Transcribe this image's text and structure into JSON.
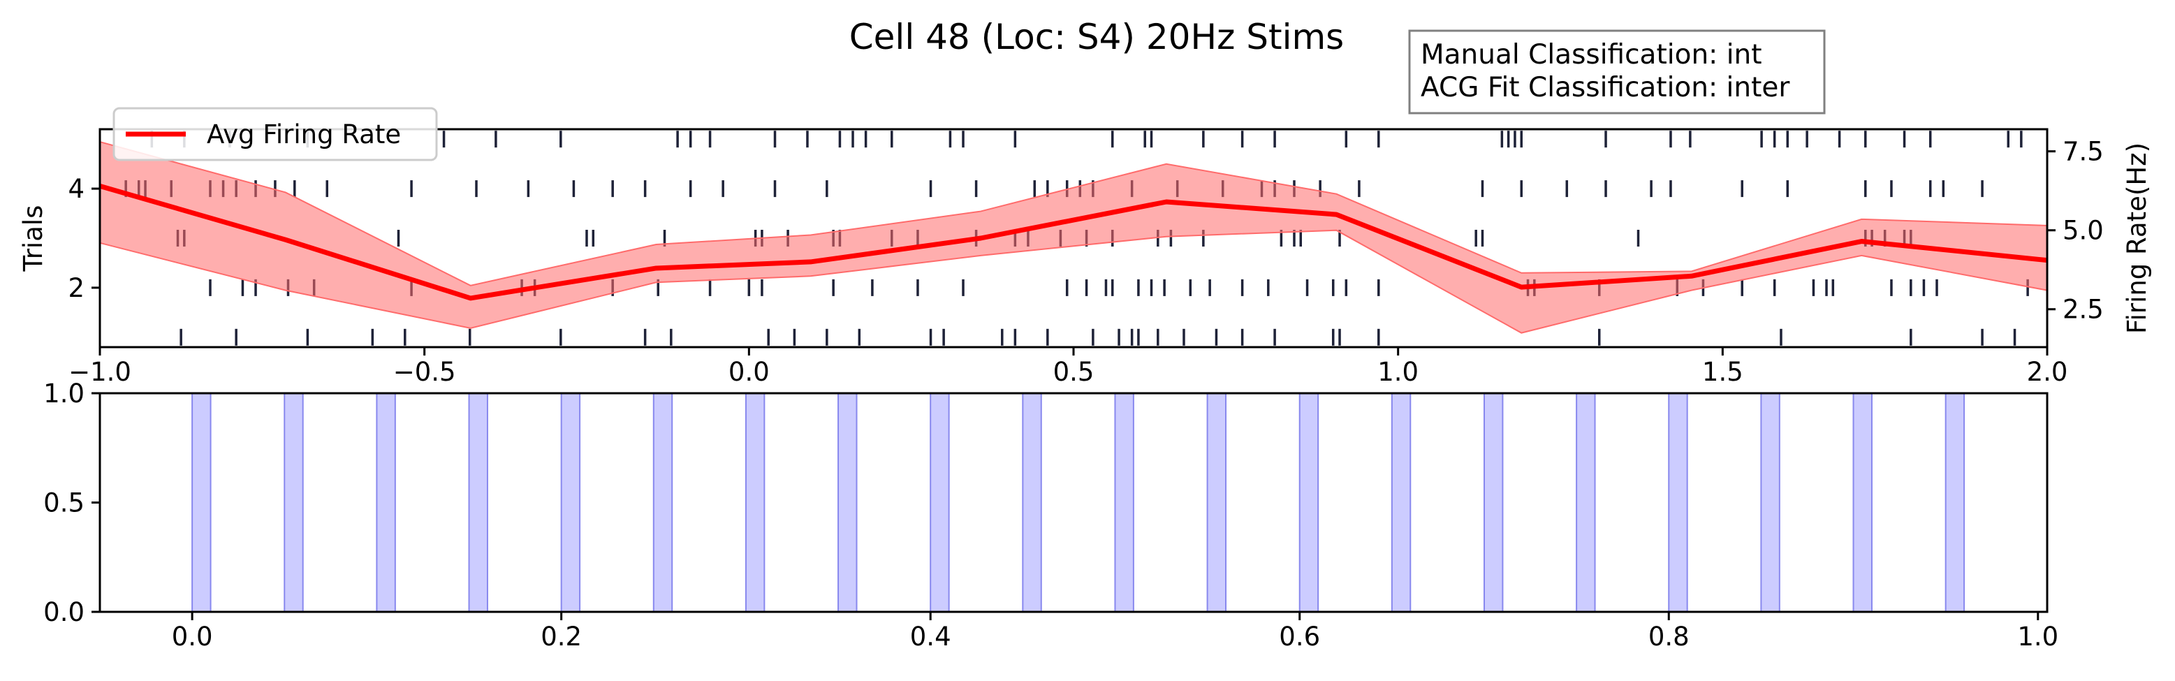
{
  "figure": {
    "title": "Cell 48 (Loc: S4) 20Hz Stims",
    "classification_lines": [
      "Manual Classification: int",
      "ACG Fit Classification: inter"
    ]
  },
  "colors": {
    "firing_rate_line": "#ff0000",
    "firing_rate_band": "#ff6b6b",
    "spike_tick": "#1e2238",
    "stim_fill": "#ccccff",
    "stim_edge": "#8888ee"
  },
  "chart_data": [
    {
      "type": "line",
      "panel": "raster-with-firing-rate",
      "xlim": [
        -1.0,
        2.0
      ],
      "x_ticks": [
        "−1.0",
        "−0.5",
        "0.0",
        "0.5",
        "1.0",
        "1.5",
        "2.0"
      ],
      "x_tick_values": [
        -1.0,
        -0.5,
        0.0,
        0.5,
        1.0,
        1.5,
        2.0
      ],
      "left_axis": {
        "label": "Trials",
        "ylim": [
          0.8,
          5.2
        ],
        "ticks": [
          "2",
          "4"
        ],
        "tick_values": [
          2,
          4
        ]
      },
      "right_axis": {
        "label": "Firing Rate(Hz)",
        "ylim": [
          1.3,
          8.2
        ],
        "ticks": [
          "2.5",
          "5.0",
          "7.5"
        ],
        "tick_values": [
          2.5,
          5.0,
          7.5
        ]
      },
      "legend": {
        "position": "top-left",
        "entries": [
          "Avg Firing Rate"
        ]
      },
      "series": [
        {
          "name": "Avg Firing Rate",
          "axis": "right",
          "x": [
            -1.0,
            -0.714,
            -0.429,
            -0.143,
            0.095,
            0.357,
            0.643,
            0.905,
            1.19,
            1.452,
            1.714,
            2.0
          ],
          "y": [
            6.4,
            4.7,
            2.85,
            3.8,
            4.0,
            4.75,
            5.9,
            5.5,
            3.2,
            3.55,
            4.65,
            4.05
          ],
          "lower": [
            4.6,
            3.1,
            1.9,
            3.35,
            3.55,
            4.2,
            4.8,
            5.0,
            1.75,
            3.1,
            4.2,
            3.1
          ],
          "upper": [
            7.8,
            6.2,
            3.25,
            4.55,
            4.85,
            5.6,
            7.1,
            6.15,
            3.65,
            3.7,
            5.35,
            5.15
          ]
        }
      ],
      "raster": [
        {
          "trial": 1,
          "spikes": [
            -0.875,
            -0.79,
            -0.68,
            -0.58,
            -0.53,
            -0.43,
            -0.29,
            -0.16,
            -0.12,
            0.03,
            0.07,
            0.12,
            0.17,
            0.28,
            0.3,
            0.39,
            0.41,
            0.46,
            0.53,
            0.57,
            0.59,
            0.6,
            0.63,
            0.67,
            0.72,
            0.76,
            0.81,
            0.9,
            0.91,
            0.97,
            1.31,
            1.59,
            1.79,
            1.9,
            1.95
          ]
        },
        {
          "trial": 2,
          "spikes": [
            -0.83,
            -0.78,
            -0.76,
            -0.71,
            -0.67,
            -0.52,
            -0.35,
            -0.33,
            -0.21,
            -0.14,
            -0.06,
            0.0,
            0.02,
            0.13,
            0.19,
            0.26,
            0.33,
            0.49,
            0.52,
            0.55,
            0.56,
            0.6,
            0.62,
            0.64,
            0.68,
            0.71,
            0.76,
            0.8,
            0.86,
            0.9,
            0.92,
            0.97,
            1.2,
            1.21,
            1.31,
            1.43,
            1.47,
            1.53,
            1.58,
            1.64,
            1.66,
            1.67,
            1.76,
            1.79,
            1.81,
            1.83,
            1.97
          ]
        },
        {
          "trial": 3,
          "spikes": [
            -0.88,
            -0.87,
            -0.54,
            -0.25,
            -0.24,
            -0.13,
            0.01,
            0.02,
            0.06,
            0.13,
            0.14,
            0.22,
            0.26,
            0.35,
            0.41,
            0.43,
            0.48,
            0.52,
            0.56,
            0.63,
            0.65,
            0.7,
            0.82,
            0.84,
            0.85,
            0.91,
            1.12,
            1.13,
            1.37,
            1.72,
            1.73,
            1.75,
            1.78,
            1.79
          ]
        },
        {
          "trial": 4,
          "spikes": [
            -0.96,
            -0.94,
            -0.93,
            -0.89,
            -0.83,
            -0.81,
            -0.79,
            -0.76,
            -0.73,
            -0.7,
            -0.65,
            -0.52,
            -0.42,
            -0.34,
            -0.27,
            -0.21,
            -0.16,
            -0.09,
            -0.04,
            0.04,
            0.12,
            0.28,
            0.35,
            0.44,
            0.46,
            0.49,
            0.51,
            0.53,
            0.59,
            0.66,
            0.73,
            0.79,
            0.81,
            0.84,
            0.88,
            0.94,
            1.13,
            1.19,
            1.26,
            1.32,
            1.39,
            1.42,
            1.53,
            1.6,
            1.72,
            1.76,
            1.82,
            1.84,
            1.9
          ]
        },
        {
          "trial": 5,
          "spikes": [
            -0.92,
            -0.87,
            -0.8,
            -0.68,
            -0.47,
            -0.39,
            -0.29,
            -0.11,
            -0.09,
            -0.06,
            0.04,
            0.09,
            0.14,
            0.16,
            0.18,
            0.22,
            0.31,
            0.33,
            0.41,
            0.56,
            0.61,
            0.62,
            0.7,
            0.76,
            0.81,
            0.92,
            0.97,
            1.16,
            1.17,
            1.18,
            1.19,
            1.32,
            1.42,
            1.45,
            1.56,
            1.58,
            1.6,
            1.63,
            1.68,
            1.72,
            1.78,
            1.82,
            1.94,
            1.96
          ]
        }
      ]
    },
    {
      "type": "bar",
      "panel": "stimulus-train",
      "xlim": [
        -0.05,
        1.005
      ],
      "ylim": [
        0.0,
        1.0
      ],
      "x_ticks": [
        "0.0",
        "0.2",
        "0.4",
        "0.6",
        "0.8",
        "1.0"
      ],
      "x_tick_values": [
        0.0,
        0.2,
        0.4,
        0.6,
        0.8,
        1.0
      ],
      "y_ticks": [
        "0.0",
        "0.5",
        "1.0"
      ],
      "y_tick_values": [
        0.0,
        0.5,
        1.0
      ],
      "pulse_starts": [
        0.0,
        0.05,
        0.1,
        0.15,
        0.2,
        0.25,
        0.3,
        0.35,
        0.4,
        0.45,
        0.5,
        0.55,
        0.6,
        0.65,
        0.7,
        0.75,
        0.8,
        0.85,
        0.9,
        0.95
      ],
      "pulse_width": 0.01
    }
  ]
}
